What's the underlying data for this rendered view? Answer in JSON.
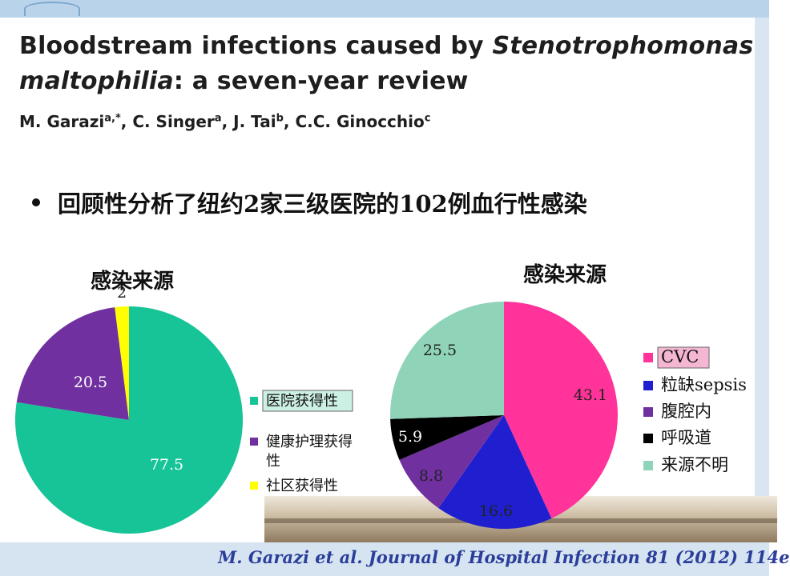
{
  "paper": {
    "title_part1": "Bloodstream infections caused by ",
    "title_italic1": "Stenotrophomonas maltophilia",
    "title_part2": ": a seven-year review",
    "authors": [
      {
        "name": "M. Garazi",
        "sup": "a,*",
        "sep": ", "
      },
      {
        "name": "C. Singer",
        "sup": "a",
        "sep": ", "
      },
      {
        "name": "J. Tai",
        "sup": "b",
        "sep": ", "
      },
      {
        "name": "C.C. Ginocchio",
        "sup": "c",
        "sep": ""
      }
    ]
  },
  "bullet": "回顾性分析了纽约2家三级医院的102例血行性感染",
  "citation": "M. Garazi et al.  Journal of Hospital Infection 81 (2012) 114e",
  "chart_data": [
    {
      "type": "pie",
      "title": "感染来源",
      "categories": [
        "医院获得性",
        "健康护理获得性",
        "社区获得性"
      ],
      "values": [
        77.5,
        20.5,
        2
      ],
      "colors": [
        "#16c497",
        "#7030a0",
        "#ffff00"
      ],
      "legend_placement": "right",
      "highlighted_legend_entry": "医院获得性"
    },
    {
      "type": "pie",
      "title": "感染来源",
      "categories": [
        "CVC",
        "粒缺sepsis",
        "腹腔内",
        "呼吸道",
        "来源不明"
      ],
      "values": [
        43.1,
        16.6,
        8.8,
        5.9,
        25.5
      ],
      "colors": [
        "#ff3399",
        "#1f1fd0",
        "#7030a0",
        "#000000",
        "#8fd4b8"
      ],
      "legend_placement": "right",
      "highlighted_legend_entry": "CVC"
    }
  ]
}
